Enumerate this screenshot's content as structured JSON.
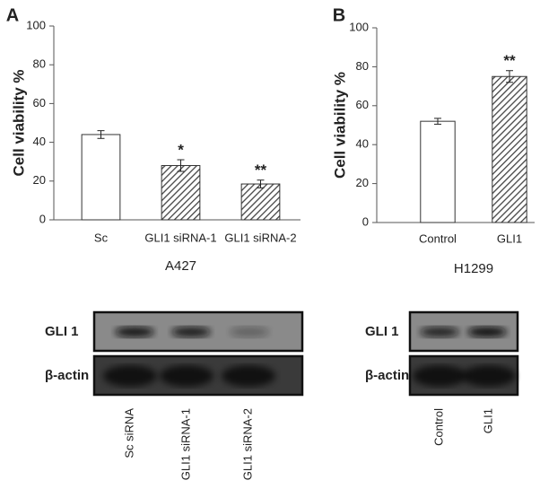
{
  "chart_data": [
    {
      "type": "bar",
      "panel": "A",
      "ylabel": "Cell viability %",
      "xlabel": "A427",
      "categories": [
        "Sc",
        "GLI1 siRNA-1",
        "GLI1 siRNA-2"
      ],
      "values": [
        44,
        28,
        18.5
      ],
      "errors": [
        2,
        3,
        2
      ],
      "fills": [
        "plain",
        "hatched",
        "hatched"
      ],
      "annotations": [
        null,
        "*",
        "**"
      ],
      "ylim": [
        0,
        100
      ],
      "yticks": [
        0,
        20,
        40,
        60,
        80,
        100
      ]
    },
    {
      "type": "bar",
      "panel": "B",
      "ylabel": "Cell viability %",
      "xlabel": "H1299",
      "categories": [
        "Control",
        "GLI1"
      ],
      "values": [
        52,
        75
      ],
      "errors": [
        1.5,
        3
      ],
      "fills": [
        "plain",
        "hatched"
      ],
      "annotations": [
        null,
        "**"
      ],
      "ylim": [
        0,
        100
      ],
      "yticks": [
        0,
        20,
        40,
        60,
        80,
        100
      ]
    }
  ],
  "blots": [
    {
      "rows": [
        "GLI 1",
        "β-actin"
      ],
      "lanes": [
        "Sc siRNA",
        "GLI1 siRNA-1",
        "GLI1 siRNA-2"
      ]
    },
    {
      "rows": [
        "GLI 1",
        "β-actin"
      ],
      "lanes": [
        "Control",
        "GLI1"
      ]
    }
  ]
}
